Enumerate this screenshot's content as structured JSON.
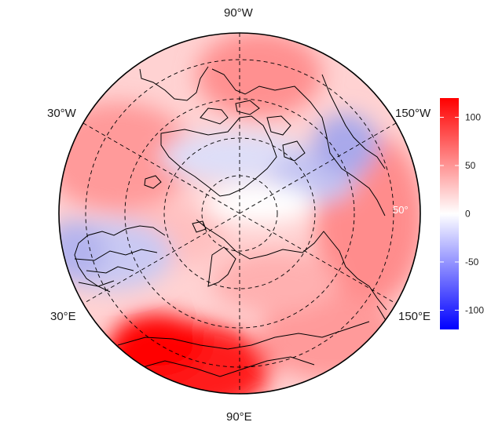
{
  "map": {
    "projection": "north-polar-stereographic",
    "longitude_labels": {
      "top": "90°W",
      "upper_left": "30°W",
      "upper_right": "150°W",
      "lower_left": "30°E",
      "lower_right": "150°E",
      "bottom": "90°E"
    },
    "latitude_label": "50°",
    "colors": {
      "high": "#ff0000",
      "zero": "#ffffff",
      "low": "#0000ff",
      "coastline": "#000000",
      "graticule": "#000000"
    }
  },
  "colorbar": {
    "range": [
      -120,
      120
    ],
    "ticks": [
      100,
      50,
      0,
      -50,
      -100
    ],
    "tick_labels": [
      "100",
      "50",
      "0",
      "-50",
      "-100"
    ]
  }
}
